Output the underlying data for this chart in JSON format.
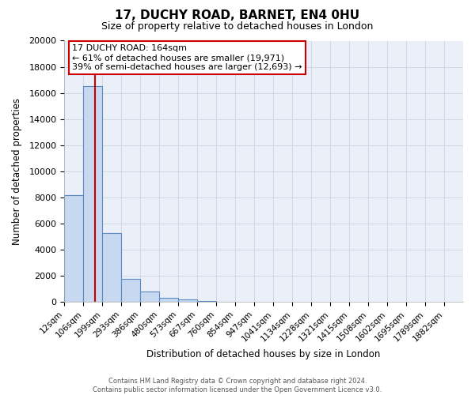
{
  "title": "17, DUCHY ROAD, BARNET, EN4 0HU",
  "subtitle": "Size of property relative to detached houses in London",
  "xlabel": "Distribution of detached houses by size in London",
  "ylabel": "Number of detached properties",
  "categories": [
    "12sqm",
    "106sqm",
    "199sqm",
    "293sqm",
    "386sqm",
    "480sqm",
    "573sqm",
    "667sqm",
    "760sqm",
    "854sqm",
    "947sqm",
    "1041sqm",
    "1134sqm",
    "1228sqm",
    "1321sqm",
    "1415sqm",
    "1508sqm",
    "1602sqm",
    "1695sqm",
    "1789sqm",
    "1882sqm"
  ],
  "bar_values": [
    8200,
    16500,
    5300,
    1750,
    800,
    300,
    200,
    100,
    50,
    0,
    0,
    0,
    0,
    0,
    0,
    0,
    0,
    0,
    0,
    0,
    0
  ],
  "bar_color": "#c6d9f0",
  "bar_edge_color": "#5b8ac4",
  "vline_color": "#cc0000",
  "ylim": [
    0,
    20000
  ],
  "yticks": [
    0,
    2000,
    4000,
    6000,
    8000,
    10000,
    12000,
    14000,
    16000,
    18000,
    20000
  ],
  "annotation_title": "17 DUCHY ROAD: 164sqm",
  "annotation_line1": "← 61% of detached houses are smaller (19,971)",
  "annotation_line2": "39% of semi-detached houses are larger (12,693) →",
  "annotation_box_color": "#ffffff",
  "annotation_box_edge": "#cc0000",
  "grid_color": "#d0d8e8",
  "background_color": "#eaeff8",
  "footer1": "Contains HM Land Registry data © Crown copyright and database right 2024.",
  "footer2": "Contains public sector information licensed under the Open Government Licence v3.0."
}
